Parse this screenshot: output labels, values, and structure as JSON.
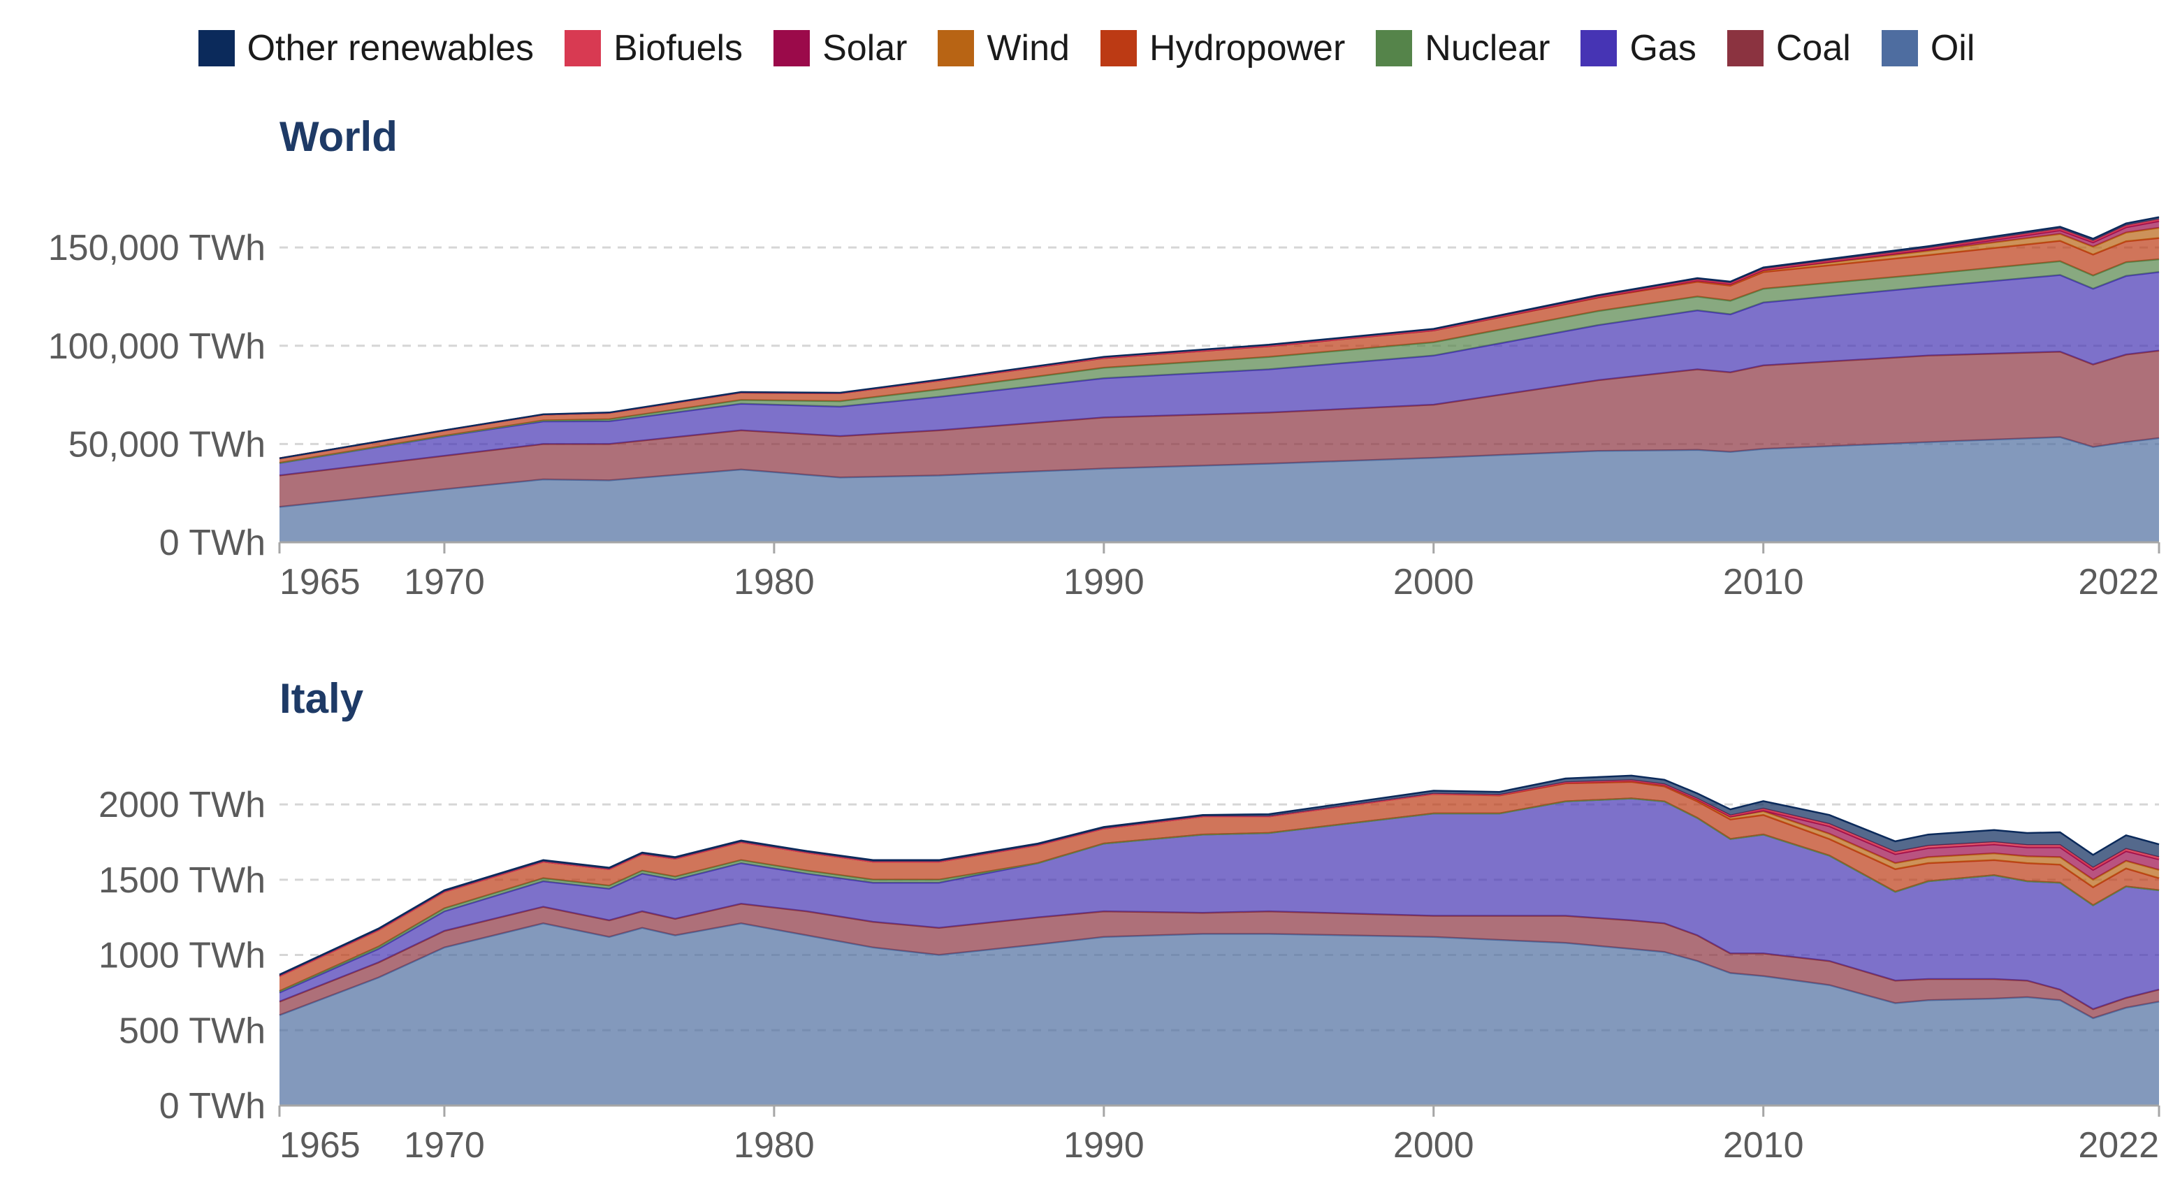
{
  "legend": {
    "items": [
      {
        "key": "other",
        "label": "Other renewables",
        "color": "#0b2a5b"
      },
      {
        "key": "biofuels",
        "label": "Biofuels",
        "color": "#d83a52"
      },
      {
        "key": "solar",
        "label": "Solar",
        "color": "#9b0a4a"
      },
      {
        "key": "wind",
        "label": "Wind",
        "color": "#b86414"
      },
      {
        "key": "hydro",
        "label": "Hydropower",
        "color": "#bc3a14"
      },
      {
        "key": "nuclear",
        "label": "Nuclear",
        "color": "#55844a"
      },
      {
        "key": "gas",
        "label": "Gas",
        "color": "#4634b4"
      },
      {
        "key": "coal",
        "label": "Coal",
        "color": "#8b3340"
      },
      {
        "key": "oil",
        "label": "Oil",
        "color": "#4e6da0"
      }
    ]
  },
  "chart_data": [
    {
      "type": "area",
      "stacked": true,
      "title": "World",
      "xlim": [
        1965,
        2022
      ],
      "ylim": [
        0,
        160000
      ],
      "x_ticks": [
        1965,
        1970,
        1980,
        1990,
        2000,
        2010,
        2022
      ],
      "y_ticks": [
        0,
        50000,
        100000,
        150000
      ],
      "y_tick_labels": [
        "0 TWh",
        "50,000 TWh",
        "100,000 TWh",
        "150,000 TWh"
      ],
      "grid": "horizontal",
      "legend_position": "top",
      "x": [
        1965,
        1970,
        1973,
        1975,
        1979,
        1982,
        1985,
        1990,
        1995,
        2000,
        2005,
        2008,
        2009,
        2010,
        2015,
        2019,
        2020,
        2021,
        2022
      ],
      "series": [
        {
          "key": "oil",
          "name": "Oil",
          "values": [
            18000,
            27000,
            32000,
            31500,
            37000,
            33000,
            34000,
            37500,
            40000,
            43000,
            46500,
            47000,
            46000,
            47500,
            51000,
            53500,
            48500,
            51000,
            53000
          ]
        },
        {
          "key": "coal",
          "name": "Coal",
          "values": [
            16000,
            17000,
            18000,
            18500,
            20000,
            21000,
            23000,
            26000,
            26000,
            27000,
            36000,
            41000,
            40500,
            42500,
            44000,
            43500,
            42000,
            44500,
            44500
          ]
        },
        {
          "key": "gas",
          "name": "Gas",
          "values": [
            6300,
            10000,
            11500,
            11600,
            13500,
            15000,
            17000,
            20000,
            22000,
            25000,
            28000,
            30000,
            29500,
            32000,
            35000,
            39000,
            38500,
            40000,
            40000
          ]
        },
        {
          "key": "nuclear",
          "name": "Nuclear",
          "values": [
            100,
            200,
            500,
            1000,
            1900,
            2800,
            3800,
            5300,
            6300,
            6800,
            7200,
            7000,
            6900,
            7000,
            6500,
            7000,
            6700,
            7000,
            6500
          ]
        },
        {
          "key": "hydro",
          "name": "Hydropower",
          "values": [
            2300,
            2700,
            3000,
            3300,
            3800,
            4000,
            4500,
            5000,
            5500,
            6000,
            6800,
            7600,
            7700,
            8500,
            9600,
            10400,
            10700,
            10600,
            10800
          ]
        },
        {
          "key": "wind",
          "name": "Wind",
          "values": [
            0,
            0,
            0,
            0,
            0,
            0,
            0,
            10,
            50,
            80,
            260,
            560,
            700,
            900,
            2200,
            3500,
            4000,
            4500,
            5200
          ]
        },
        {
          "key": "solar",
          "name": "Solar",
          "values": [
            0,
            0,
            0,
            0,
            0,
            0,
            0,
            0,
            0,
            10,
            40,
            50,
            60,
            80,
            700,
            1800,
            2200,
            2700,
            3400
          ]
        },
        {
          "key": "biofuels",
          "name": "Biofuels",
          "values": [
            0,
            0,
            0,
            0,
            50,
            80,
            100,
            150,
            150,
            150,
            300,
            500,
            550,
            600,
            700,
            850,
            800,
            900,
            950
          ]
        },
        {
          "key": "other",
          "name": "Other renewables",
          "values": [
            50,
            80,
            120,
            140,
            180,
            220,
            320,
            400,
            500,
            550,
            650,
            700,
            730,
            750,
            900,
            1000,
            1050,
            1050,
            1100
          ]
        }
      ]
    },
    {
      "type": "area",
      "stacked": true,
      "title": "Italy",
      "xlim": [
        1965,
        2022
      ],
      "ylim": [
        0,
        2200
      ],
      "x_ticks": [
        1965,
        1970,
        1980,
        1990,
        2000,
        2010,
        2022
      ],
      "y_ticks": [
        0,
        500,
        1000,
        1500,
        2000
      ],
      "y_tick_labels": [
        "0 TWh",
        "500 TWh",
        "1000 TWh",
        "1500 TWh",
        "2000 TWh"
      ],
      "grid": "horizontal",
      "legend_position": "top",
      "x": [
        1965,
        1968,
        1970,
        1973,
        1975,
        1976,
        1977,
        1979,
        1981,
        1983,
        1985,
        1988,
        1990,
        1993,
        1995,
        2000,
        2002,
        2004,
        2006,
        2007,
        2008,
        2009,
        2010,
        2012,
        2014,
        2015,
        2017,
        2018,
        2019,
        2020,
        2021,
        2022
      ],
      "series": [
        {
          "key": "oil",
          "name": "Oil",
          "values": [
            600,
            850,
            1050,
            1210,
            1120,
            1180,
            1130,
            1210,
            1130,
            1050,
            1000,
            1070,
            1120,
            1140,
            1140,
            1120,
            1100,
            1080,
            1040,
            1020,
            960,
            880,
            860,
            800,
            680,
            700,
            710,
            720,
            700,
            580,
            650,
            690
          ]
        },
        {
          "key": "coal",
          "name": "Coal",
          "values": [
            90,
            100,
            110,
            110,
            110,
            110,
            110,
            130,
            160,
            170,
            180,
            180,
            170,
            140,
            150,
            140,
            160,
            180,
            190,
            190,
            170,
            130,
            150,
            160,
            150,
            140,
            130,
            110,
            70,
            60,
            65,
            80
          ]
        },
        {
          "key": "gas",
          "name": "Gas",
          "values": [
            60,
            90,
            130,
            170,
            210,
            250,
            260,
            270,
            250,
            260,
            300,
            360,
            450,
            520,
            520,
            680,
            680,
            760,
            810,
            810,
            780,
            760,
            790,
            700,
            590,
            650,
            690,
            660,
            710,
            690,
            740,
            660
          ]
        },
        {
          "key": "nuclear",
          "name": "Nuclear",
          "values": [
            10,
            15,
            20,
            20,
            20,
            20,
            20,
            20,
            20,
            20,
            20,
            0,
            0,
            0,
            0,
            0,
            0,
            0,
            0,
            0,
            0,
            0,
            0,
            0,
            0,
            0,
            0,
            0,
            0,
            0,
            0,
            0
          ]
        },
        {
          "key": "hydro",
          "name": "Hydropower",
          "values": [
            100,
            110,
            110,
            110,
            110,
            110,
            120,
            120,
            120,
            120,
            120,
            120,
            100,
            120,
            110,
            130,
            120,
            120,
            110,
            100,
            110,
            130,
            130,
            110,
            150,
            120,
            100,
            120,
            120,
            120,
            120,
            80
          ]
        },
        {
          "key": "wind",
          "name": "Wind",
          "values": [
            0,
            0,
            0,
            0,
            0,
            0,
            0,
            0,
            0,
            0,
            0,
            0,
            0,
            0,
            0,
            1,
            3,
            5,
            8,
            10,
            13,
            17,
            25,
            35,
            40,
            40,
            45,
            45,
            50,
            50,
            50,
            55
          ]
        },
        {
          "key": "solar",
          "name": "Solar",
          "values": [
            0,
            0,
            0,
            0,
            0,
            0,
            0,
            0,
            0,
            0,
            0,
            0,
            0,
            0,
            0,
            0,
            0,
            0,
            0,
            0,
            0,
            2,
            5,
            50,
            60,
            60,
            60,
            60,
            65,
            65,
            65,
            70
          ]
        },
        {
          "key": "biofuels",
          "name": "Biofuels",
          "values": [
            0,
            0,
            0,
            0,
            0,
            0,
            0,
            0,
            0,
            0,
            0,
            0,
            0,
            0,
            0,
            0,
            0,
            2,
            3,
            4,
            5,
            8,
            12,
            15,
            15,
            15,
            15,
            15,
            15,
            15,
            15,
            15
          ]
        },
        {
          "key": "other",
          "name": "Other renewables",
          "values": [
            10,
            10,
            10,
            10,
            10,
            10,
            10,
            10,
            10,
            10,
            10,
            10,
            10,
            10,
            15,
            20,
            20,
            25,
            30,
            30,
            35,
            40,
            50,
            60,
            70,
            75,
            80,
            80,
            85,
            85,
            90,
            85
          ]
        }
      ]
    }
  ]
}
